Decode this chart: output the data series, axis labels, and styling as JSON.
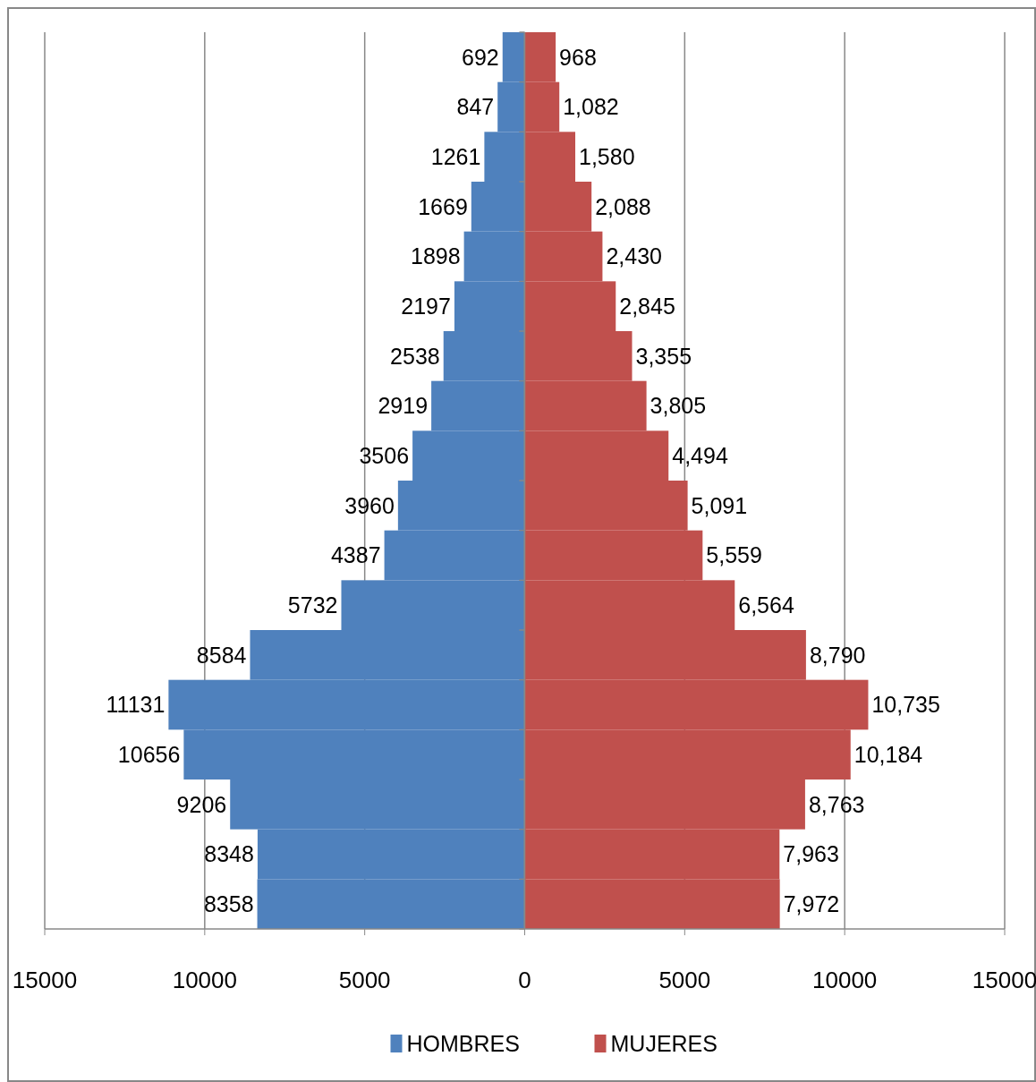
{
  "chart_data": [
    {
      "type": "bar",
      "orientation": "horizontal",
      "categories": [
        null,
        null,
        null,
        null,
        null,
        null,
        null,
        null,
        null,
        null,
        null,
        null,
        null,
        null,
        null,
        null,
        null,
        null
      ],
      "series": [
        {
          "name": "HOMBRES",
          "color": "#4f81bd",
          "values": [
            692,
            847,
            1261,
            1669,
            1898,
            2197,
            2538,
            2919,
            3506,
            3960,
            4387,
            5732,
            8584,
            11131,
            10656,
            9206,
            8348,
            8358
          ]
        }
      ],
      "data_labels": true,
      "xlim": [
        15000,
        0
      ],
      "xticks": [
        15000,
        10000,
        5000,
        0
      ],
      "grid": "x",
      "legend": "bottom",
      "tick_labels": "x"
    },
    {
      "type": "bar",
      "orientation": "horizontal",
      "categories": [
        null,
        null,
        null,
        null,
        null,
        null,
        null,
        null,
        null,
        null,
        null,
        null,
        null,
        null,
        null,
        null,
        null,
        null
      ],
      "series": [
        {
          "name": "MUJERES",
          "color": "#c0504d",
          "values": [
            968,
            1082,
            1580,
            2088,
            2430,
            2845,
            3355,
            3805,
            4494,
            5091,
            5559,
            6564,
            8790,
            10735,
            10184,
            8763,
            7963,
            7972
          ],
          "value_labels": [
            "968",
            "1,082",
            "1,580",
            "2,088",
            "2,430",
            "2,845",
            "3,355",
            "3,805",
            "4,494",
            "5,091",
            "5,559",
            "6,564",
            "8,790",
            "10,735",
            "10,184",
            "8,763",
            "7,963",
            "7,972"
          ]
        }
      ],
      "xlim": [
        0,
        15000
      ],
      "xticks": [
        {
          "value": 0,
          "label": null
        },
        5000,
        10000,
        15000
      ],
      "grid": "x",
      "legend": "bottom",
      "tick_labels": "x"
    }
  ]
}
